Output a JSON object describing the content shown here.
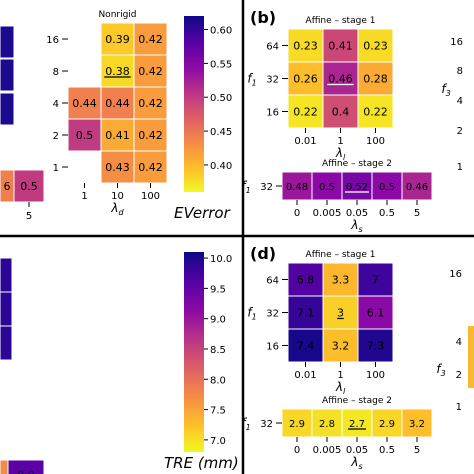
{
  "panels": {
    "b_label": "(b)",
    "d_label": "(d)"
  },
  "colormap": [
    "#0d0887",
    "#5302a3",
    "#8b0aa5",
    "#b83289",
    "#db5c68",
    "#f48849",
    "#febd2a",
    "#f0f921"
  ],
  "chart_data": [
    {
      "id": "partial-left-top",
      "type": "heatmap",
      "title": "",
      "visible_values": [
        [
          6
        ],
        [
          0.5
        ]
      ],
      "x_tick_labels": [
        "5"
      ]
    },
    {
      "id": "nonrigid-ev",
      "type": "heatmap",
      "title": "Nonrigid",
      "y_tick_labels": [
        "16",
        "8",
        "4",
        "2",
        "1"
      ],
      "x_tick_labels": [
        "1",
        "10",
        "100"
      ],
      "xlabel": "λd",
      "rows": [
        [
          null,
          0.39,
          0.42
        ],
        [
          null,
          0.38,
          0.42
        ],
        [
          0.44,
          0.44,
          0.42
        ],
        [
          0.5,
          0.41,
          0.42
        ],
        [
          null,
          0.43,
          0.42
        ]
      ],
      "underlined": [
        "1,1"
      ],
      "colorbar": {
        "label": "EVerror",
        "ticks": [
          "0.60",
          "0.55",
          "0.50",
          "0.45",
          "0.40"
        ],
        "range": [
          0.36,
          0.62
        ]
      }
    },
    {
      "id": "b-affine-stage1",
      "type": "heatmap",
      "title": "Affine – stage 1",
      "ylabel": "f1",
      "y_tick_labels": [
        "64",
        "32",
        "16"
      ],
      "x_tick_labels": [
        "0.01",
        "1",
        "100"
      ],
      "xlabel": "λl",
      "rows": [
        [
          0.23,
          0.41,
          0.23
        ],
        [
          0.26,
          0.46,
          0.28
        ],
        [
          0.22,
          0.4,
          0.22
        ]
      ],
      "underlined": [
        "1,1"
      ],
      "range": [
        0.2,
        0.62
      ]
    },
    {
      "id": "b-affine-stage2",
      "type": "heatmap",
      "title": "Affine – stage 2",
      "ylabel": "f1",
      "y_tick_labels": [
        "32"
      ],
      "x_tick_labels": [
        "0",
        "0.005",
        "0.05",
        "0.5",
        "5"
      ],
      "xlabel": "λs",
      "rows": [
        [
          0.48,
          0.5,
          0.52,
          0.5,
          0.46
        ]
      ],
      "underlined": [
        "0,2"
      ],
      "range": [
        0.2,
        0.62
      ]
    },
    {
      "id": "partial-right-top",
      "type": "heatmap",
      "title": "",
      "ylabel": "f3",
      "y_tick_labels": [
        "16",
        "8",
        "4",
        "2",
        "1"
      ]
    },
    {
      "id": "partial-left-bottom",
      "type": "heatmap",
      "title": "",
      "visible_values": [
        [
          8.9
        ]
      ]
    },
    {
      "id": "tre-colorbar",
      "type": "heatmap",
      "title": "",
      "colorbar": {
        "label": "TRE (mm)",
        "ticks": [
          "10.0",
          "9.5",
          "9.0",
          "8.5",
          "8.0",
          "7.5",
          "7.0"
        ],
        "range": [
          6.8,
          10.1
        ]
      }
    },
    {
      "id": "d-affine-stage1",
      "type": "heatmap",
      "title": "Affine – stage 1",
      "ylabel": "f1",
      "y_tick_labels": [
        "64",
        "32",
        "16"
      ],
      "x_tick_labels": [
        "0.01",
        "1",
        "100"
      ],
      "xlabel": "λl",
      "rows": [
        [
          "6.8",
          "3.3",
          "7"
        ],
        [
          "7.1",
          "3",
          "6.1"
        ],
        [
          "7.4",
          "3.2",
          "7.3"
        ]
      ],
      "underlined": [
        "1,1"
      ],
      "range": [
        2.5,
        7.5
      ]
    },
    {
      "id": "d-affine-stage2",
      "type": "heatmap",
      "title": "Affine – stage 2",
      "ylabel": "f1",
      "y_tick_labels": [
        "32"
      ],
      "x_tick_labels": [
        "0",
        "0.005",
        "0.05",
        "0.5",
        "5"
      ],
      "xlabel": "λs",
      "rows": [
        [
          "2.9",
          "2.8",
          "2.7",
          "2.9",
          "3.2"
        ]
      ],
      "underlined": [
        "0,2"
      ],
      "range": [
        2.5,
        7.5
      ]
    },
    {
      "id": "partial-right-bottom",
      "type": "heatmap",
      "title": "",
      "ylabel": "f3",
      "y_tick_labels": [
        "16",
        "4",
        "2",
        "1"
      ]
    }
  ]
}
